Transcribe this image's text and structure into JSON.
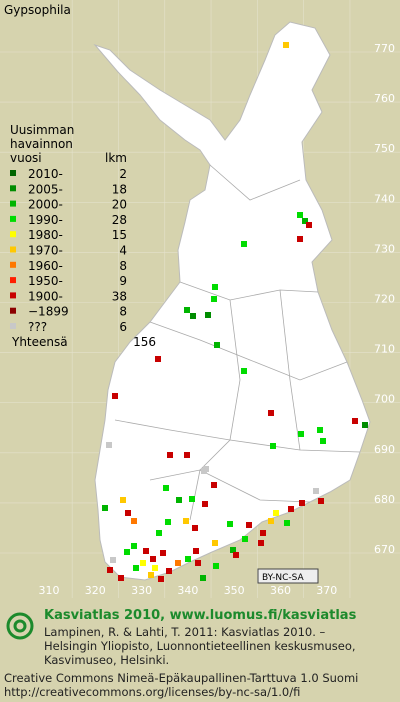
{
  "title": "Gypsophila",
  "legend": {
    "header": [
      "Uusimman",
      "havainnon",
      "vuosi"
    ],
    "count_header": "lkm",
    "rows": [
      {
        "label": "2010-",
        "count": 2,
        "color": "#006400"
      },
      {
        "label": "2005-",
        "count": 18,
        "color": "#008c00"
      },
      {
        "label": "2000-",
        "count": 20,
        "color": "#00b400"
      },
      {
        "label": "1990-",
        "count": 28,
        "color": "#00dc00"
      },
      {
        "label": "1980-",
        "count": 15,
        "color": "#ffff00"
      },
      {
        "label": "1970-",
        "count": 4,
        "color": "#ffc800"
      },
      {
        "label": "1960-",
        "count": 8,
        "color": "#ff7800"
      },
      {
        "label": "1950-",
        "count": 9,
        "color": "#ff1e00"
      },
      {
        "label": "1900-",
        "count": 38,
        "color": "#c80000"
      },
      {
        "label": "−1899",
        "count": 8,
        "color": "#8c0000"
      },
      {
        "label": "???",
        "count": 6,
        "color": "#c8c8c8"
      }
    ],
    "total_label": "Yhteensä",
    "total": 156
  },
  "map": {
    "x_labels": [
      310,
      320,
      330,
      340,
      350,
      360,
      370
    ],
    "y_labels": [
      770,
      760,
      750,
      740,
      730,
      720,
      710,
      700,
      690,
      680,
      670
    ],
    "license_badge": "BY-NC-SA"
  },
  "footer": {
    "heading": "Kasviatlas 2010, www.luomus.fi/kasviatlas",
    "citation": [
      "Lampinen, R. & Lahti, T. 2011: Kasviatlas 2010. –",
      "Helsingin Yliopisto, Luonnontieteellinen keskusmuseo,",
      "Kasvimuseo, Helsinki."
    ],
    "license": [
      "Creative Commons Nimeä-Epäkaupallinen-Tarttuva 1.0 Suomi",
      "http://creativecommons.org/licenses/by-nc-sa/1.0/fi"
    ]
  }
}
